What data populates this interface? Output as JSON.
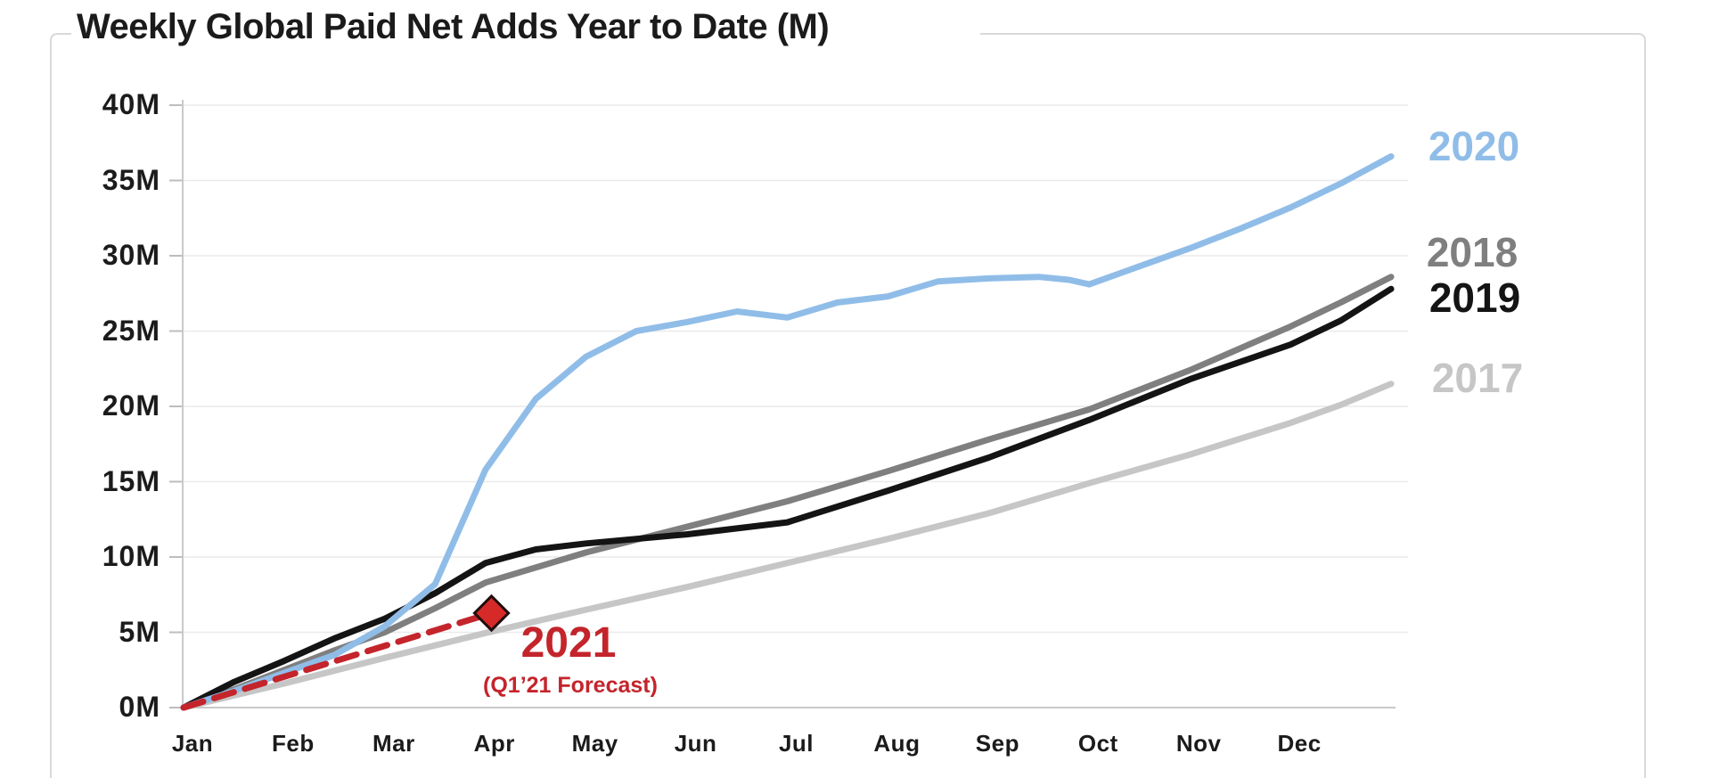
{
  "title": "Weekly Global Paid Net Adds Year to Date (M)",
  "colors": {
    "blue_2020": "#90bde8",
    "gray_2018": "#7f7f7f",
    "black_2019": "#141414",
    "lightgray_2017": "#c6c6c6",
    "red_2021": "#c4242b",
    "diamond_fill": "#d52a28",
    "diamond_border": "#230c0c",
    "grid": "#eaeaea",
    "axis": "#c9c9c9",
    "tick": "#bdbdbd",
    "frame": "#d9d9d9",
    "text": "#1b1b1b"
  },
  "annotations": {
    "label_2020": "2020",
    "label_2018": "2018",
    "label_2019": "2019",
    "label_2017": "2017",
    "label_2021": "2021",
    "forecast_note": "(Q1’21 Forecast)"
  },
  "chart_data": {
    "type": "line",
    "title": "Weekly Global Paid Net Adds Year to Date (M)",
    "xlabel": "",
    "ylabel": "",
    "grid": "horizontal",
    "legend_position": "end-of-line labels at right of each series",
    "x_unit": "months since Jan 1 (0 = Jan 1, 12 = Dec 31)",
    "x_tick_labels": [
      "Jan",
      "Feb",
      "Mar",
      "Apr",
      "May",
      "Jun",
      "Jul",
      "Aug",
      "Sep",
      "Oct",
      "Nov",
      "Dec"
    ],
    "y_axis": {
      "min": 0,
      "max": 40,
      "step": 5,
      "unit": "M",
      "tick_labels": [
        "0M",
        "5M",
        "10M",
        "15M",
        "20M",
        "25M",
        "30M",
        "35M",
        "40M"
      ]
    },
    "series": [
      {
        "name": "2017",
        "color": "#c6c6c6",
        "style": "solid",
        "x": [
          0,
          1,
          2,
          3,
          4,
          5,
          6,
          7,
          8,
          9,
          10,
          11,
          11.5,
          12
        ],
        "y": [
          0,
          1.6,
          3.3,
          4.95,
          6.5,
          8.0,
          9.6,
          11.2,
          12.9,
          14.9,
          16.8,
          18.9,
          20.1,
          21.5
        ]
      },
      {
        "name": "2018",
        "color": "#7f7f7f",
        "style": "solid",
        "x": [
          0,
          0.5,
          1,
          1.5,
          2,
          2.5,
          3,
          4,
          5,
          6,
          7,
          8,
          9,
          10,
          11,
          11.5,
          12
        ],
        "y": [
          0,
          1.2,
          2.5,
          3.8,
          5.0,
          6.6,
          8.3,
          10.3,
          12.0,
          13.7,
          15.7,
          17.8,
          19.8,
          22.4,
          25.3,
          26.9,
          28.6
        ]
      },
      {
        "name": "2019",
        "color": "#141414",
        "style": "solid",
        "x": [
          0,
          0.5,
          1,
          1.5,
          2,
          2.5,
          3,
          3.5,
          4,
          4.5,
          5,
          6,
          7,
          8,
          9,
          10,
          11,
          11.5,
          12
        ],
        "y": [
          0,
          1.7,
          3.1,
          4.6,
          5.9,
          7.6,
          9.6,
          10.5,
          10.9,
          11.2,
          11.5,
          12.3,
          14.4,
          16.6,
          19.1,
          21.8,
          24.1,
          25.7,
          27.8
        ]
      },
      {
        "name": "2020",
        "color": "#90bde8",
        "style": "solid",
        "x": [
          0,
          0.5,
          1,
          1.5,
          2,
          2.5,
          3,
          3.5,
          4,
          4.5,
          5,
          5.5,
          6,
          6.5,
          7,
          7.5,
          8,
          8.5,
          8.8,
          9,
          9.5,
          10,
          10.5,
          11,
          11.5,
          12
        ],
        "y": [
          0,
          1.1,
          2.3,
          3.5,
          5.4,
          8.2,
          15.8,
          20.5,
          23.3,
          25.0,
          25.6,
          26.3,
          25.9,
          26.9,
          27.3,
          28.3,
          28.5,
          28.6,
          28.4,
          28.1,
          29.3,
          30.5,
          31.8,
          33.2,
          34.8,
          36.6
        ]
      },
      {
        "name": "2021",
        "color": "#c4242b",
        "style": "dashed",
        "x": [
          0,
          3.06
        ],
        "y": [
          0,
          6.27
        ],
        "marker_end": {
          "shape": "diamond",
          "x": 3.06,
          "y": 6.27
        }
      }
    ]
  }
}
